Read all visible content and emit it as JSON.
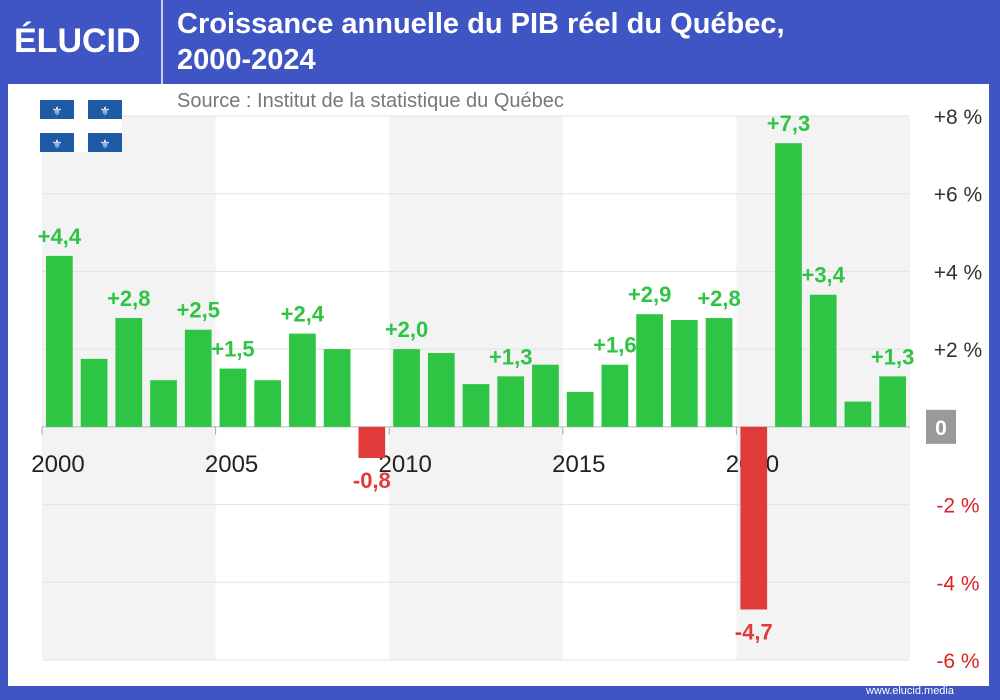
{
  "header": {
    "logo": "ÉLUCID",
    "title_line1": "Croissance annuelle du PIB réel du Québec,",
    "title_line2": "2000-2024",
    "source": "Source : Institut de la statistique du Québec"
  },
  "footer": {
    "url": "www.elucid.media"
  },
  "colors": {
    "frame": "#3f55c3",
    "positive": "#2ec444",
    "negative": "#e03a3a",
    "positive_label": "#2ec444",
    "negative_label": "#e03a3a"
  },
  "chart_data": {
    "type": "bar",
    "title": "Croissance annuelle du PIB réel du Québec, 2000-2024",
    "categories": [
      2000,
      2001,
      2002,
      2003,
      2004,
      2005,
      2006,
      2007,
      2008,
      2009,
      2010,
      2011,
      2012,
      2013,
      2014,
      2015,
      2016,
      2017,
      2018,
      2019,
      2020,
      2021,
      2022,
      2023,
      2024
    ],
    "values": [
      4.4,
      1.75,
      2.8,
      1.2,
      2.5,
      1.5,
      1.2,
      2.4,
      2.0,
      -0.8,
      2.0,
      1.9,
      1.1,
      1.3,
      1.6,
      0.9,
      1.6,
      2.9,
      2.75,
      2.8,
      -4.7,
      7.3,
      3.4,
      0.65,
      1.3
    ],
    "data_labels": {
      "2000": "+4,4",
      "2002": "+2,8",
      "2004": "+2,5",
      "2005": "+1,5",
      "2007": "+2,4",
      "2009": "-0,8",
      "2010": "+2,0",
      "2013": "+1,3",
      "2016": "+1,6",
      "2017": "+2,9",
      "2019": "+2,8",
      "2020": "-4,7",
      "2021": "+7,3",
      "2022": "+3,4",
      "2024": "+1,3"
    },
    "x_tick_labels": [
      "2000",
      "2005",
      "2010",
      "2015",
      "2020"
    ],
    "y_ticks": [
      8,
      6,
      4,
      2,
      0,
      -2,
      -4,
      -6
    ],
    "y_tick_labels": [
      "+8 %",
      "+6 %",
      "+4 %",
      "+2 %",
      "0",
      "-2 %",
      "-4 %",
      "-6 %"
    ],
    "ylim": [
      -6,
      8
    ],
    "grid": true,
    "y_axis_side": "right"
  }
}
